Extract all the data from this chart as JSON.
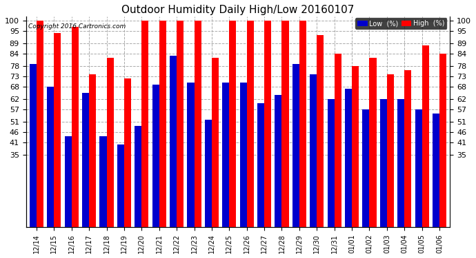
{
  "title": "Outdoor Humidity Daily High/Low 20160107",
  "copyright": "Copyright 2016 Cartronics.com",
  "labels": [
    "12/14",
    "12/15",
    "12/16",
    "12/17",
    "12/18",
    "12/19",
    "12/20",
    "12/21",
    "12/22",
    "12/23",
    "12/24",
    "12/25",
    "12/26",
    "12/27",
    "12/28",
    "12/29",
    "12/30",
    "12/31",
    "01/01",
    "01/02",
    "01/03",
    "01/04",
    "01/05",
    "01/06"
  ],
  "high": [
    100,
    94,
    97,
    74,
    82,
    72,
    100,
    100,
    100,
    100,
    82,
    100,
    100,
    100,
    100,
    100,
    93,
    84,
    78,
    82,
    74,
    76,
    88,
    84
  ],
  "low": [
    79,
    68,
    44,
    65,
    44,
    40,
    49,
    69,
    83,
    70,
    52,
    70,
    70,
    60,
    64,
    79,
    74,
    62,
    67,
    57,
    62,
    62,
    57,
    55
  ],
  "high_color": "#ff0000",
  "low_color": "#0000cc",
  "bg_color": "#ffffff",
  "grid_color": "#aaaaaa",
  "yticks": [
    35,
    41,
    46,
    51,
    57,
    62,
    68,
    73,
    78,
    84,
    89,
    95,
    100
  ],
  "ylim_display": [
    35,
    102
  ],
  "ylim_bars": 0,
  "title_fontsize": 11,
  "legend_low_label": "Low  (%)",
  "legend_high_label": "High  (%)"
}
